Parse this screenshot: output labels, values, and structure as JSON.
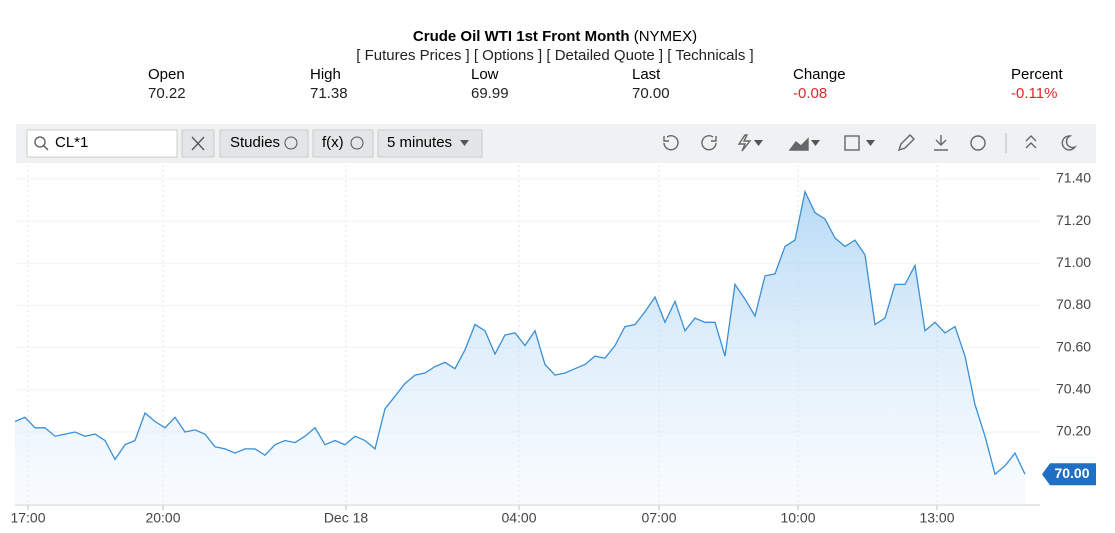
{
  "header": {
    "title": "Crude Oil WTI 1st Front Month",
    "exchange": "(NYMEX)",
    "links": "[ Futures Prices ] [ Options ] [ Detailed Quote ] [ Technicals ]",
    "quote": [
      {
        "label": "Open",
        "value": "70.22"
      },
      {
        "label": "High",
        "value": "71.38"
      },
      {
        "label": "Low",
        "value": "69.99"
      },
      {
        "label": "Last",
        "value": "70.00"
      },
      {
        "label": "Change",
        "value": "-0.08"
      },
      {
        "label": "Percent",
        "value": "-0.11%"
      }
    ]
  },
  "toolbar": {
    "symbol": "CL*1",
    "studies": "Studies",
    "function": "f(x)",
    "interval": "5 minutes"
  },
  "chart_data": {
    "type": "area",
    "color": "#3b8fd6",
    "values": [
      70.25,
      70.27,
      70.22,
      70.22,
      70.18,
      70.19,
      70.2,
      70.18,
      70.19,
      70.16,
      70.07,
      70.14,
      70.16,
      70.29,
      70.25,
      70.22,
      70.27,
      70.2,
      70.21,
      70.19,
      70.13,
      70.12,
      70.1,
      70.12,
      70.12,
      70.09,
      70.14,
      70.16,
      70.15,
      70.18,
      70.22,
      70.14,
      70.16,
      70.14,
      70.18,
      70.16,
      70.12,
      70.31,
      70.37,
      70.43,
      70.47,
      70.48,
      70.51,
      70.53,
      70.5,
      70.59,
      70.71,
      70.68,
      70.57,
      70.66,
      70.67,
      70.61,
      70.68,
      70.52,
      70.47,
      70.48,
      70.5,
      70.52,
      70.56,
      70.55,
      70.61,
      70.7,
      70.71,
      70.77,
      70.84,
      70.72,
      70.82,
      70.68,
      70.74,
      70.72,
      70.72,
      70.56,
      70.9,
      70.83,
      70.75,
      70.94,
      70.95,
      71.08,
      71.11,
      71.34,
      71.24,
      71.21,
      71.12,
      71.08,
      71.11,
      71.04,
      70.71,
      70.74,
      70.9,
      70.9,
      70.99,
      70.68,
      70.72,
      70.67,
      70.7,
      70.56,
      70.33,
      70.18,
      70.0,
      70.04,
      70.1,
      70.0
    ],
    "xlim": [
      0,
      102.5
    ],
    "xticks": [
      {
        "value": 1.3,
        "label": "17:00"
      },
      {
        "value": 14.8,
        "label": "20:00"
      },
      {
        "value": 33.1,
        "label": "Dec 18"
      },
      {
        "value": 50.4,
        "label": "04:00"
      },
      {
        "value": 64.4,
        "label": "07:00"
      },
      {
        "value": 78.3,
        "label": "10:00"
      },
      {
        "value": 92.2,
        "label": "13:00"
      }
    ],
    "ylim": [
      69.854,
      71.466
    ],
    "yticks": [
      {
        "value": 70.2,
        "label": "70.20"
      },
      {
        "value": 70.4,
        "label": "70.40"
      },
      {
        "value": 70.6,
        "label": "70.60"
      },
      {
        "value": 70.8,
        "label": "70.80"
      },
      {
        "value": 71.0,
        "label": "71.00"
      },
      {
        "value": 71.2,
        "label": "71.20"
      },
      {
        "value": 71.4,
        "label": "71.40"
      }
    ],
    "last_marker": {
      "value": 70.0,
      "label": "70.00"
    },
    "grid": true
  }
}
